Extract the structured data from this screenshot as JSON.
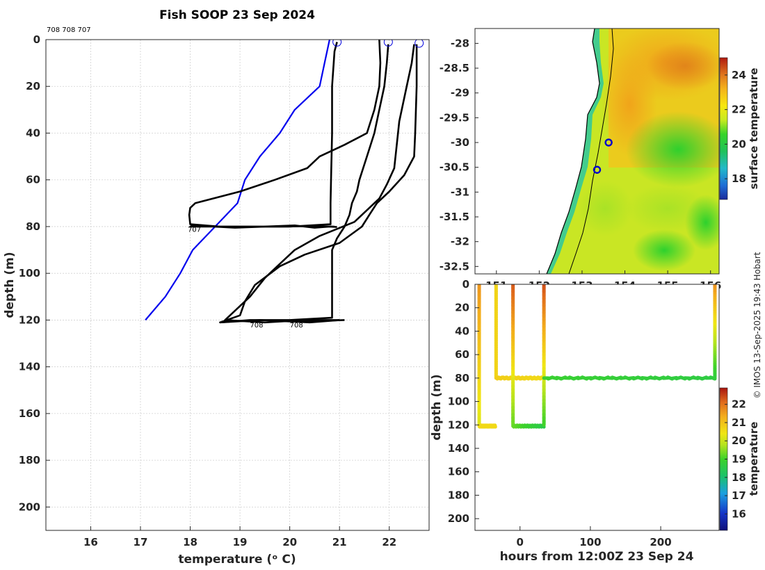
{
  "figure": {
    "title": "Fish SOOP 23 Sep 2024",
    "copyright": "© IMOS 13-Sep-2025 19:43 Hobart"
  },
  "chart_data": [
    {
      "type": "line",
      "panel": "profiles",
      "title": "Fish SOOP 23 Sep 2024",
      "subtitle": "708 708 707",
      "xlabel": "temperature (ᵒ C)",
      "ylabel": "depth (m)",
      "xlim": [
        15.1,
        22.8
      ],
      "ylim": [
        210,
        0
      ],
      "xticks": [
        16,
        17,
        18,
        19,
        20,
        21,
        22
      ],
      "yticks": [
        0,
        20,
        40,
        60,
        80,
        100,
        120,
        140,
        160,
        180,
        200
      ],
      "grid": true,
      "annotations": [
        "707",
        "708",
        "708"
      ],
      "series": [
        {
          "color": "#0000ee",
          "x": [
            20.8,
            20.7,
            20.6,
            20.1,
            19.8,
            19.4,
            19.1,
            18.95,
            18.5,
            18.05,
            17.8,
            17.5,
            17.1
          ],
          "y": [
            0,
            10,
            20,
            30,
            40,
            50,
            60,
            70,
            80,
            90,
            100,
            110,
            120
          ]
        },
        {
          "color": "#000000",
          "x": [
            20.95,
            20.9,
            20.85,
            20.85,
            20.83,
            20.82,
            20.82,
            20.82,
            20.0,
            18.5,
            18.0,
            18.05,
            18.9,
            20.1,
            20.5,
            20.8,
            20.95
          ],
          "y": [
            1,
            5,
            20,
            40,
            60,
            70,
            75,
            79,
            80,
            80,
            80,
            79.5,
            80.5,
            79.5,
            80.5,
            80,
            80.2
          ]
        },
        {
          "color": "#000000",
          "x": [
            21.8,
            21.82,
            21.8,
            21.7,
            21.55,
            21.1,
            20.6,
            20.35,
            19.7,
            19.0,
            18.1,
            18.0,
            17.98,
            18.0,
            18.6,
            19.8,
            20.5,
            20.9
          ],
          "y": [
            0,
            10,
            20,
            30,
            40,
            45,
            50,
            55,
            60,
            65,
            70,
            72,
            75,
            79,
            80,
            80,
            79.8,
            80
          ]
        },
        {
          "color": "#000000",
          "x": [
            21.98,
            21.95,
            21.9,
            21.8,
            21.7,
            21.55,
            21.4,
            21.35,
            21.25,
            21.2,
            21.1,
            20.95,
            20.85,
            20.85,
            20.85,
            20.0,
            19.2,
            18.6,
            18.8,
            19.6,
            20.4,
            21.1
          ],
          "y": [
            2,
            10,
            20,
            30,
            40,
            50,
            60,
            65,
            70,
            75,
            80,
            85,
            90,
            100,
            119,
            120,
            120,
            121,
            120.5,
            120,
            120.5,
            120
          ]
        },
        {
          "color": "#000000",
          "x": [
            22.5,
            22.45,
            22.35,
            22.2,
            22.15,
            22.1,
            21.95,
            21.8,
            21.6,
            21.3,
            20.6,
            20.1,
            19.8,
            19.5,
            19.2,
            18.7,
            19.5,
            20.3,
            21.0
          ],
          "y": [
            2,
            10,
            20,
            35,
            45,
            55,
            62,
            68,
            72,
            78,
            84,
            90,
            96,
            102,
            110,
            120,
            121,
            120,
            120
          ]
        },
        {
          "color": "#000000",
          "x": [
            22.55,
            22.55,
            22.52,
            22.5,
            22.3,
            22.0,
            21.75,
            21.6,
            21.45,
            21.0,
            20.3,
            19.8,
            19.3,
            19.1,
            19.0,
            18.6,
            19.4,
            20.4,
            21.0
          ],
          "y": [
            2,
            20,
            40,
            50,
            58,
            65,
            70,
            75,
            80,
            87,
            92,
            97,
            105,
            112,
            118,
            121,
            120,
            121,
            120
          ]
        }
      ],
      "surface_markers": [
        {
          "x": 20.95,
          "y": 1
        },
        {
          "x": 21.98,
          "y": 1
        },
        {
          "x": 22.6,
          "y": 1.5
        }
      ]
    },
    {
      "type": "heatmap",
      "panel": "map",
      "xlim": [
        150.5,
        156.2
      ],
      "ylim": [
        -32.65,
        -27.7
      ],
      "xticks": [
        151,
        152,
        153,
        154,
        155,
        156
      ],
      "yticks": [
        -28,
        -28.5,
        -29,
        -29.5,
        -30,
        -30.5,
        -31,
        -31.5,
        -32,
        -32.5
      ],
      "colorbar": {
        "label": "surface temperature",
        "min": 16.8,
        "max": 25.0,
        "ticks": [
          18,
          20,
          22,
          24
        ]
      },
      "locations": [
        {
          "lon": 153.62,
          "lat": -30.0
        },
        {
          "lon": 153.35,
          "lat": -30.55
        }
      ]
    },
    {
      "type": "scatter",
      "panel": "track",
      "xlabel": "hours from 12:00Z 23 Sep 24",
      "ylabel": "depth (m)",
      "xlim": [
        -64,
        283
      ],
      "ylim": [
        210,
        0
      ],
      "xticks": [
        0,
        100,
        200
      ],
      "yticks": [
        0,
        20,
        40,
        60,
        80,
        100,
        120,
        140,
        160,
        180,
        200
      ],
      "colorbar": {
        "label": "temperature",
        "min": 15.1,
        "max": 22.9,
        "ticks": [
          16,
          17,
          18,
          19,
          20,
          21,
          22
        ]
      },
      "segments": [
        {
          "x": [
            -58,
            -58
          ],
          "y": [
            0,
            120
          ],
          "t": [
            21.6,
            20.2
          ]
        },
        {
          "x": [
            -58,
            -35
          ],
          "y": [
            121,
            121
          ],
          "t": [
            20.6,
            20.6
          ]
        },
        {
          "x": [
            -34,
            -34
          ],
          "y": [
            0,
            80
          ],
          "t": [
            20.7,
            20.7
          ]
        },
        {
          "x": [
            -34,
            34
          ],
          "y": [
            80,
            80
          ],
          "t": [
            20.8,
            20.6
          ]
        },
        {
          "x": [
            -10,
            -10
          ],
          "y": [
            0,
            120
          ],
          "t": [
            22.3,
            19.3
          ]
        },
        {
          "x": [
            -10,
            34
          ],
          "y": [
            121,
            121
          ],
          "t": [
            19.3,
            18.5
          ]
        },
        {
          "x": 34,
          "y_span": [
            0,
            120
          ],
          "t": [
            22.4,
            19.0
          ]
        },
        {
          "x": [
            34,
            277
          ],
          "y": [
            80,
            80
          ],
          "t": [
            18.9,
            18.6
          ]
        },
        {
          "x": [
            277,
            277
          ],
          "y": [
            0,
            80
          ],
          "t": [
            21.7,
            18.7
          ]
        }
      ]
    }
  ]
}
